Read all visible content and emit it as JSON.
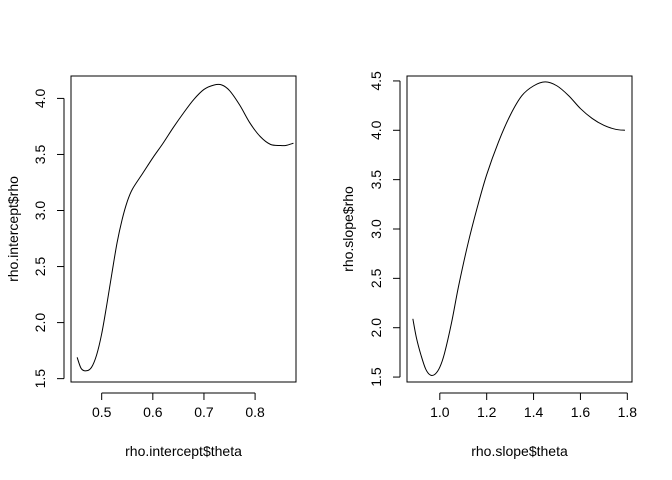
{
  "chart_data": [
    {
      "type": "line",
      "title": "",
      "xlabel": "rho.intercept$theta",
      "ylabel": "rho.intercept$rho",
      "xlim": [
        0.44,
        0.88
      ],
      "ylim": [
        1.47,
        4.2
      ],
      "x_ticks": [
        0.5,
        0.6,
        0.7,
        0.8
      ],
      "x_tick_labels": [
        "0.5",
        "0.6",
        "0.7",
        "0.8"
      ],
      "y_ticks": [
        1.5,
        2.0,
        2.5,
        3.0,
        3.5,
        4.0
      ],
      "y_tick_labels": [
        "1.5",
        "2.0",
        "2.5",
        "3.0",
        "3.5",
        "4.0"
      ],
      "grid": false,
      "series": [
        {
          "x": [
            0.452,
            0.46,
            0.47,
            0.48,
            0.49,
            0.5,
            0.51,
            0.52,
            0.53,
            0.54,
            0.55,
            0.56,
            0.58,
            0.6,
            0.62,
            0.64,
            0.66,
            0.68,
            0.7,
            0.72,
            0.735,
            0.75,
            0.77,
            0.79,
            0.81,
            0.83,
            0.85,
            0.86,
            0.875
          ],
          "y": [
            1.69,
            1.59,
            1.57,
            1.6,
            1.71,
            1.9,
            2.16,
            2.44,
            2.71,
            2.92,
            3.08,
            3.19,
            3.33,
            3.47,
            3.6,
            3.74,
            3.87,
            3.99,
            4.08,
            4.12,
            4.12,
            4.07,
            3.94,
            3.78,
            3.66,
            3.59,
            3.58,
            3.58,
            3.6
          ]
        }
      ]
    },
    {
      "type": "line",
      "title": "",
      "xlabel": "rho.slope$theta",
      "ylabel": "rho.slope$rho",
      "xlim": [
        0.86,
        1.82
      ],
      "ylim": [
        1.45,
        4.55
      ],
      "x_ticks": [
        1.0,
        1.2,
        1.4,
        1.6,
        1.8
      ],
      "x_tick_labels": [
        "1.0",
        "1.2",
        "1.4",
        "1.6",
        "1.8"
      ],
      "y_ticks": [
        1.5,
        2.0,
        2.5,
        3.0,
        3.5,
        4.0,
        4.5
      ],
      "y_tick_labels": [
        "1.5",
        "2.0",
        "2.5",
        "3.0",
        "3.5",
        "4.0",
        "4.5"
      ],
      "grid": false,
      "series": [
        {
          "x": [
            0.885,
            0.9,
            0.92,
            0.94,
            0.96,
            0.98,
            1.0,
            1.02,
            1.05,
            1.08,
            1.12,
            1.16,
            1.2,
            1.25,
            1.3,
            1.35,
            1.4,
            1.45,
            1.5,
            1.55,
            1.6,
            1.65,
            1.7,
            1.75,
            1.79
          ],
          "y": [
            2.09,
            1.9,
            1.72,
            1.58,
            1.52,
            1.53,
            1.6,
            1.74,
            2.05,
            2.42,
            2.85,
            3.22,
            3.55,
            3.88,
            4.15,
            4.35,
            4.45,
            4.49,
            4.45,
            4.35,
            4.22,
            4.12,
            4.05,
            4.01,
            4.0
          ]
        }
      ]
    }
  ]
}
